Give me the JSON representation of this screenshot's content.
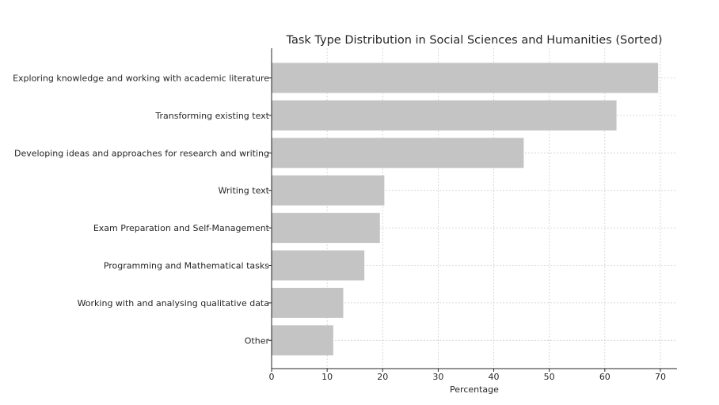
{
  "chart_data": {
    "type": "bar",
    "orientation": "horizontal",
    "title": "Task Type Distribution in Social Sciences and Humanities (Sorted)",
    "xlabel": "Percentage",
    "ylabel": "",
    "categories": [
      "Exploring knowledge and working with academic literature",
      "Transforming existing text",
      "Developing ideas and approaches for research and writing",
      "Writing text",
      "Exam Preparation and Self-Management",
      "Programming and Mathematical tasks",
      "Working with and analysing qualitative data",
      "Other"
    ],
    "values": [
      69.6,
      62.1,
      45.4,
      20.3,
      19.5,
      16.7,
      12.9,
      11.1
    ],
    "xlim": [
      0,
      73
    ],
    "x_ticks": [
      0,
      10,
      20,
      30,
      40,
      50,
      60,
      70
    ],
    "grid": true,
    "colors": {
      "bar": "#c4c4c4",
      "grid": "#cfcfcf",
      "axis": "#262626"
    }
  }
}
